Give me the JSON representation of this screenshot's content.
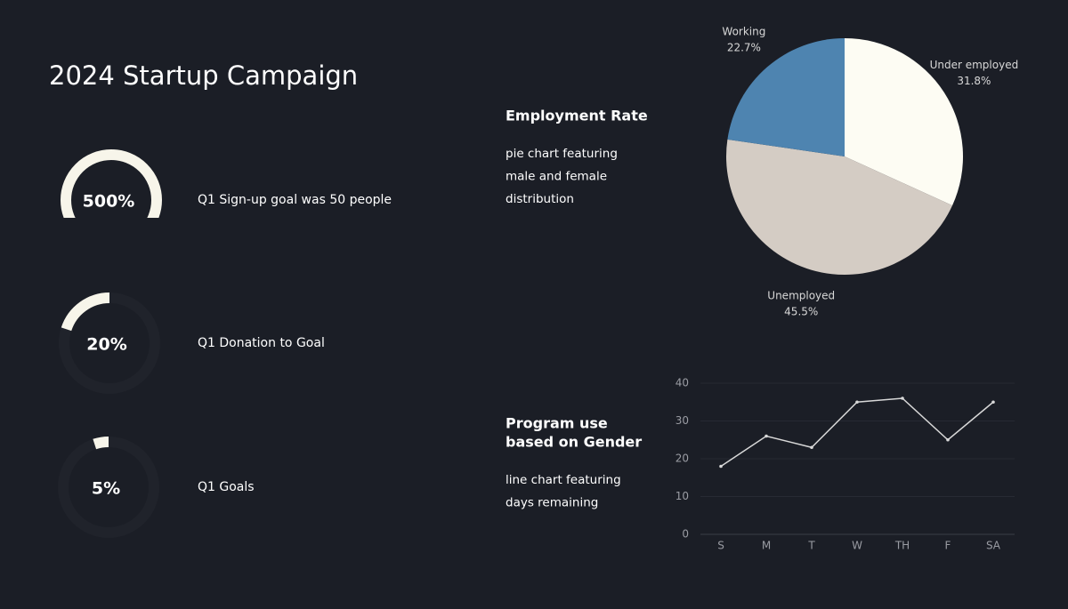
{
  "title": "2024  Startup Campaign",
  "gauges": {
    "values": [
      500,
      20,
      5
    ],
    "value_labels": [
      "500%",
      "20%",
      "5%"
    ],
    "labels": [
      "Q1 Sign-up goal was 50 people",
      "Q1 Donation to Goal",
      "Q1 Goals"
    ]
  },
  "panels": [
    {
      "title_lines": [
        "Employment Rate"
      ],
      "description_lines": [
        "pie chart featuring",
        "male and female",
        "distribution"
      ]
    },
    {
      "title_lines": [
        "Program use",
        "based on Gender"
      ],
      "description_lines": [
        "line chart featuring",
        "days remaining"
      ]
    }
  ],
  "chart_data": [
    {
      "type": "pie",
      "categories": [
        "Under employed",
        "Unemployed",
        "Working"
      ],
      "values": [
        31.8,
        45.5,
        22.7
      ],
      "value_labels": [
        "31.8%",
        "45.5%",
        "22.7%"
      ],
      "colors": [
        "#fdfcf3",
        "#d4ccc4",
        "#4e84b0"
      ]
    },
    {
      "type": "line",
      "categories": [
        "S",
        "M",
        "T",
        "W",
        "TH",
        "F",
        "SA"
      ],
      "values": [
        18,
        26,
        23,
        35,
        36,
        25,
        35
      ],
      "color": "#d8d8d8",
      "ylim": [
        0,
        40
      ],
      "yticks": [
        0,
        10,
        20,
        30,
        40
      ],
      "grid": true
    }
  ]
}
